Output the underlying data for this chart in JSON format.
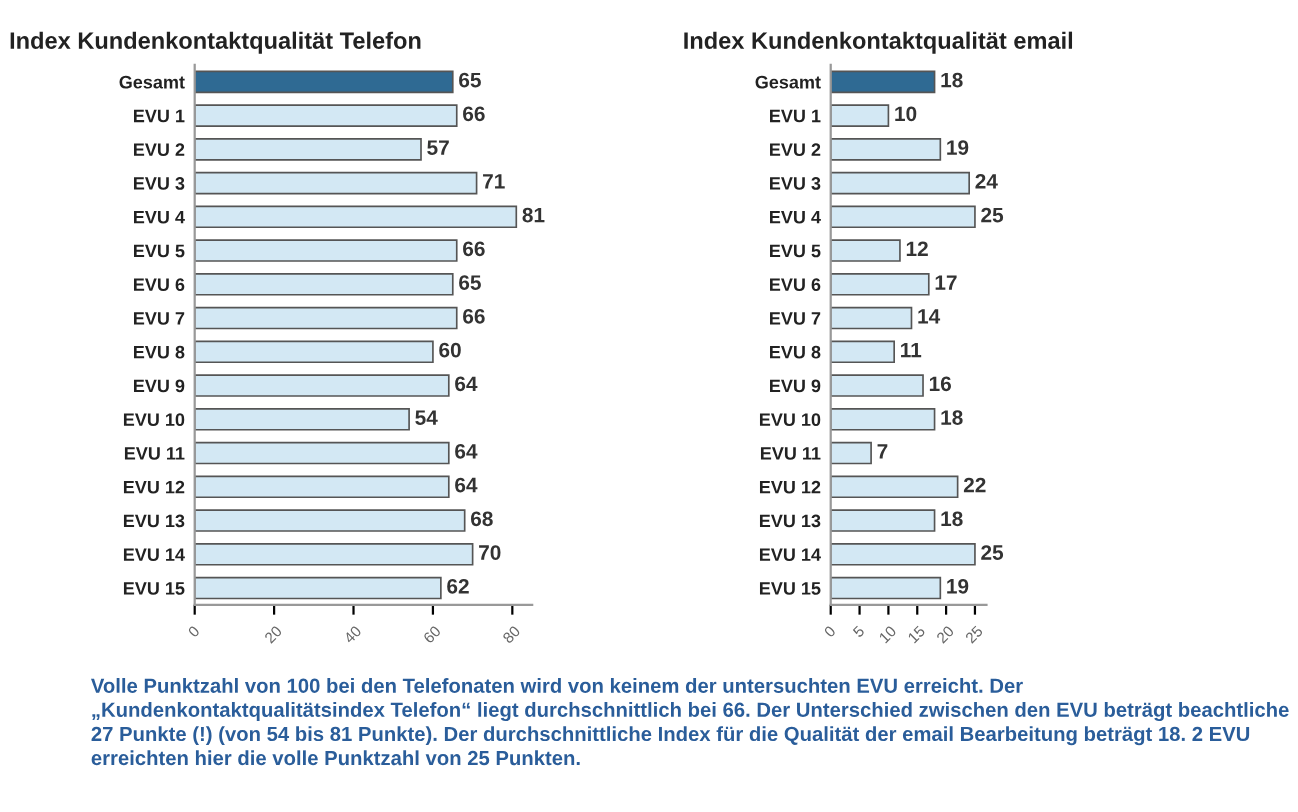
{
  "chart_data": [
    {
      "type": "bar",
      "orientation": "horizontal",
      "title": "Index Kundenkontaktqualität Telefon",
      "categories": [
        "Gesamt",
        "EVU 1",
        "EVU 2",
        "EVU 3",
        "EVU 4",
        "EVU 5",
        "EVU 6",
        "EVU 7",
        "EVU 8",
        "EVU 9",
        "EVU 10",
        "EVU 11",
        "EVU 12",
        "EVU 13",
        "EVU 14",
        "EVU 15"
      ],
      "values": [
        65,
        66,
        57,
        71,
        81,
        66,
        65,
        66,
        60,
        64,
        54,
        64,
        64,
        68,
        70,
        62
      ],
      "colors": [
        "#2f6a93",
        "#d3e8f4",
        "#d3e8f4",
        "#d3e8f4",
        "#d3e8f4",
        "#d3e8f4",
        "#d3e8f4",
        "#d3e8f4",
        "#d3e8f4",
        "#d3e8f4",
        "#d3e8f4",
        "#d3e8f4",
        "#d3e8f4",
        "#d3e8f4",
        "#d3e8f4",
        "#d3e8f4"
      ],
      "xlim": [
        0,
        85
      ],
      "xticks": [
        0,
        20,
        40,
        60,
        80
      ],
      "data_labels": true,
      "grid": false,
      "annotations": [
        "Volle Punktzahl von 100 bei den Telefonaten wird von keinem der untersuchten EVU erreicht. Der „Kundenkontaktqualitätsindex Telefon“ liegt durchschnittlich bei 66. Der Unterschied zwischen den EVU beträgt beachtliche 27 Punkte (!) (von 54 bis 81 Punkte). Der durchschnittliche Index für die Qualität der email Bearbeitung beträgt 18. 2 EVU erreichten hier die volle Punktzahl von 25 Punkten."
      ]
    },
    {
      "type": "bar",
      "orientation": "horizontal",
      "title": "Index Kundenkontaktqualität email",
      "categories": [
        "Gesamt",
        "EVU 1",
        "EVU 2",
        "EVU 3",
        "EVU 4",
        "EVU 5",
        "EVU 6",
        "EVU 7",
        "EVU 8",
        "EVU 9",
        "EVU 10",
        "EVU 11",
        "EVU 12",
        "EVU 13",
        "EVU 14",
        "EVU 15"
      ],
      "values": [
        18,
        10,
        19,
        24,
        25,
        12,
        17,
        14,
        11,
        16,
        18,
        7,
        22,
        18,
        25,
        19
      ],
      "colors": [
        "#2f6a93",
        "#d3e8f4",
        "#d3e8f4",
        "#d3e8f4",
        "#d3e8f4",
        "#d3e8f4",
        "#d3e8f4",
        "#d3e8f4",
        "#d3e8f4",
        "#d3e8f4",
        "#d3e8f4",
        "#d3e8f4",
        "#d3e8f4",
        "#d3e8f4",
        "#d3e8f4",
        "#d3e8f4"
      ],
      "xlim": [
        0,
        27
      ],
      "xticks": [
        0,
        5,
        10,
        15,
        20,
        25
      ],
      "data_labels": true,
      "grid": false
    }
  ]
}
